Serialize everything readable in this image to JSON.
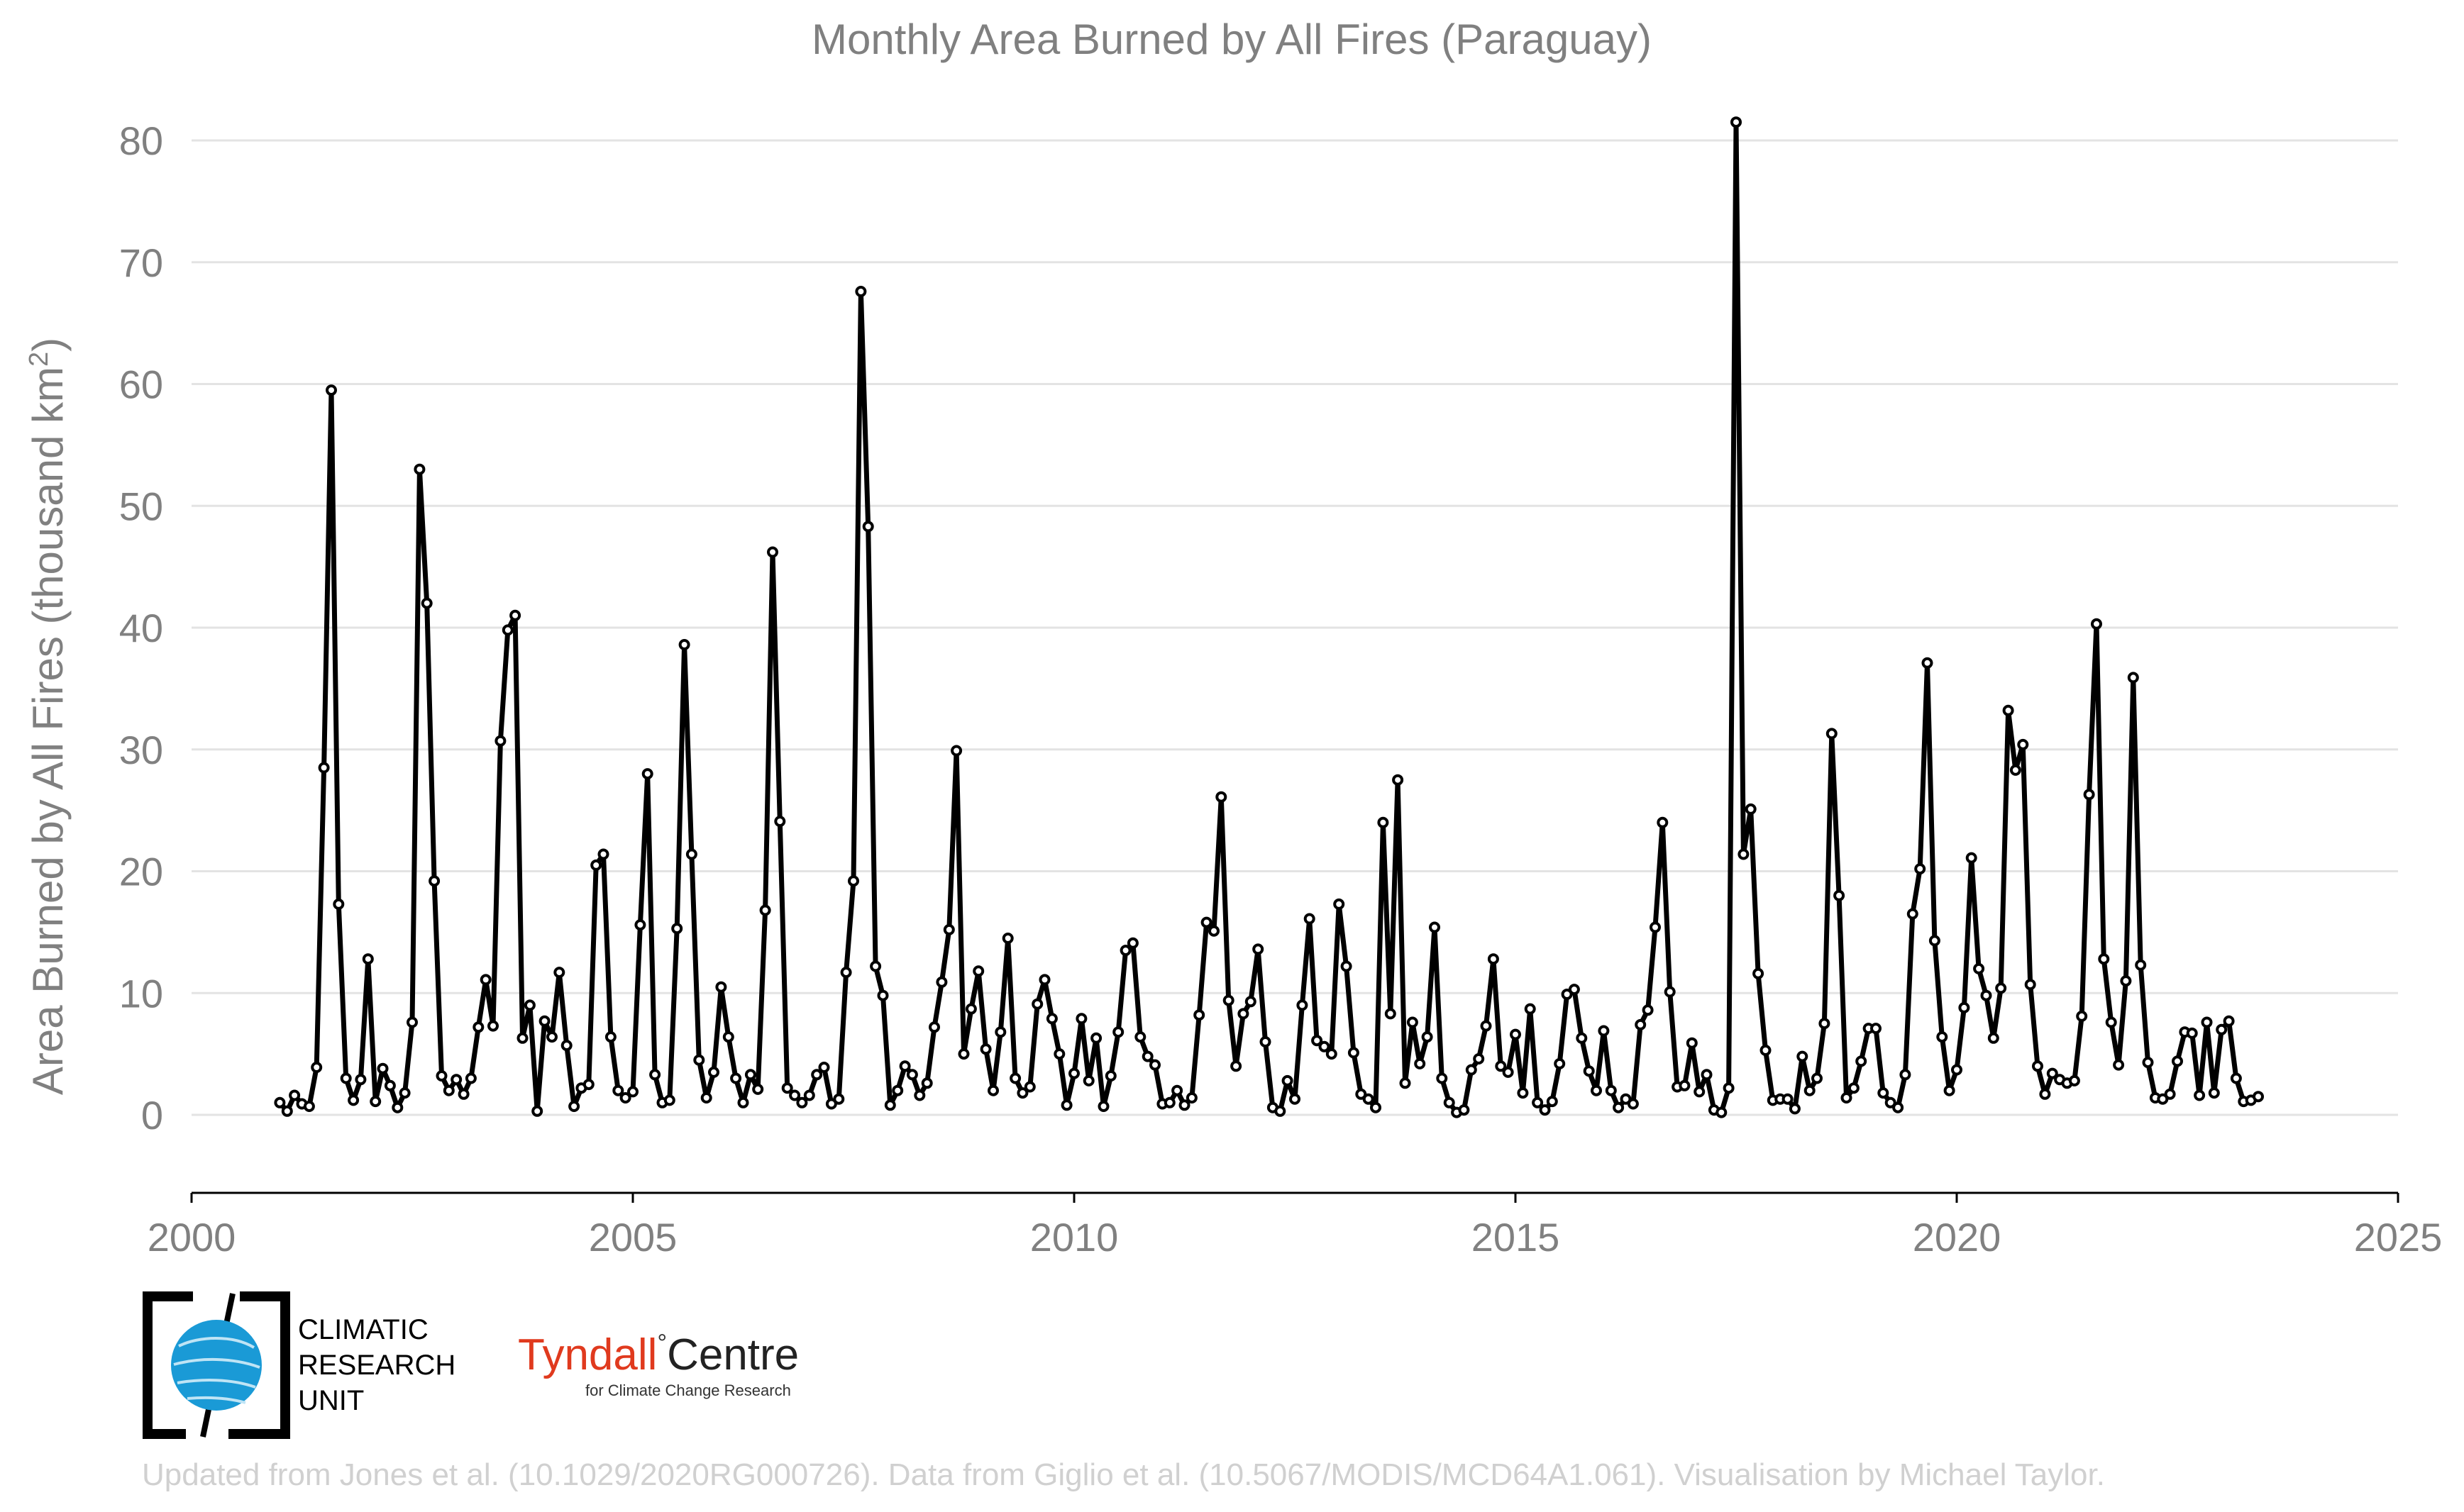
{
  "title": "Monthly Area Burned by All Fires (Paraguay)",
  "ylabel_main": "Area Burned by All Fires (thousand km",
  "ylabel_sup": "2",
  "ylabel_close": ")",
  "logos": {
    "cru_line1": "CLIMATIC",
    "cru_line2": "RESEARCH",
    "cru_line3": "UNIT",
    "tyndall_a": "Tyndall",
    "tyndall_deg": "°",
    "tyndall_b": "Centre",
    "tyndall_sub": "for Climate Change Research"
  },
  "credit": "Updated from Jones et al. (10.1029/2020RG000726). Data from Giglio et al. (10.5067/MODIS/MCD64A1.061). Visualisation by Michael Taylor.",
  "colors": {
    "line": "#000000",
    "marker_fill": "#ffffff",
    "grid": "#e3e3e3",
    "text": "#808080",
    "tyndall_red": "#e03a1e",
    "cru_blue": "#1a9ad6"
  },
  "chart_data": {
    "type": "line",
    "title": "Monthly Area Burned by All Fires (Paraguay)",
    "xlabel": "",
    "ylabel": "Area Burned by All Fires (thousand km²)",
    "xlim": [
      2000,
      2025
    ],
    "ylim": [
      -6.5,
      83
    ],
    "xticks": [
      2000,
      2005,
      2010,
      2015,
      2020,
      2025
    ],
    "yticks": [
      0,
      10,
      20,
      30,
      40,
      50,
      60,
      70,
      80
    ],
    "grid": "horizontal",
    "x_start": "2001-01",
    "x_step": "1 month",
    "series": [
      {
        "values": [
          1.0,
          0.3,
          1.6,
          0.9,
          0.7,
          3.9,
          28.5,
          59.5,
          17.3,
          3.0,
          1.2,
          2.9,
          12.8,
          1.1,
          3.8,
          2.4,
          0.6,
          1.8,
          7.6,
          53.0,
          42.0,
          19.2,
          3.2,
          2.0,
          2.9,
          1.7,
          3.0,
          7.2,
          11.1,
          7.3,
          30.7,
          39.8,
          41.0,
          6.3,
          9.0,
          0.3,
          7.7,
          6.4,
          11.7,
          5.7,
          0.7,
          2.2,
          2.5,
          20.5,
          21.4,
          6.4,
          2.0,
          1.4,
          1.9,
          15.6,
          28.0,
          3.3,
          1.0,
          1.2,
          15.3,
          38.6,
          21.4,
          4.5,
          1.4,
          3.5,
          10.5,
          6.4,
          3.0,
          1.0,
          3.3,
          2.1,
          16.8,
          46.2,
          24.1,
          2.2,
          1.6,
          1.0,
          1.6,
          3.3,
          3.9,
          0.9,
          1.3,
          11.7,
          19.2,
          67.6,
          48.3,
          12.2,
          9.8,
          0.8,
          2.0,
          4.0,
          3.3,
          1.6,
          2.6,
          7.2,
          10.9,
          15.2,
          29.9,
          5.0,
          8.7,
          11.8,
          5.4,
          2.0,
          6.8,
          14.5,
          3.0,
          1.8,
          2.3,
          9.1,
          11.1,
          7.9,
          5.0,
          0.8,
          3.4,
          7.9,
          2.8,
          6.3,
          0.7,
          3.2,
          6.8,
          13.5,
          14.1,
          6.4,
          4.8,
          4.1,
          0.9,
          1.0,
          2.0,
          0.8,
          1.4,
          8.2,
          15.8,
          15.1,
          26.1,
          9.4,
          4.0,
          8.3,
          9.3,
          13.6,
          6.0,
          0.6,
          0.3,
          2.8,
          1.3,
          9.0,
          16.1,
          6.1,
          5.6,
          5.0,
          17.3,
          12.2,
          5.1,
          1.7,
          1.3,
          0.6,
          24.0,
          8.3,
          27.5,
          2.6,
          7.6,
          4.2,
          6.4,
          15.4,
          3.0,
          1.0,
          0.2,
          0.4,
          3.7,
          4.6,
          7.3,
          12.8,
          4.0,
          3.5,
          6.6,
          1.8,
          8.7,
          1.0,
          0.4,
          1.1,
          4.2,
          9.9,
          10.3,
          6.3,
          3.6,
          2.0,
          6.9,
          2.0,
          0.6,
          1.3,
          0.9,
          7.4,
          8.6,
          15.4,
          24.0,
          10.1,
          2.3,
          2.4,
          5.9,
          1.9,
          3.3,
          0.4,
          0.2,
          2.2,
          81.5,
          21.4,
          25.1,
          11.6,
          5.3,
          1.2,
          1.3,
          1.3,
          0.5,
          4.8,
          2.0,
          3.0,
          7.5,
          31.3,
          18.0,
          1.4,
          2.2,
          4.4,
          7.1,
          7.1,
          1.8,
          1.0,
          0.6,
          3.3,
          16.5,
          20.2,
          37.1,
          14.3,
          6.4,
          2.0,
          3.7,
          8.8,
          21.1,
          12.0,
          9.8,
          6.3,
          10.4,
          33.2,
          28.3,
          30.4,
          10.7,
          4.0,
          1.7,
          3.4,
          2.9,
          2.6,
          2.8,
          8.1,
          26.3,
          40.3,
          12.8,
          7.6,
          4.1,
          11.0,
          35.9,
          12.3,
          4.3,
          1.4,
          1.3,
          1.7,
          4.4,
          6.8,
          6.7,
          1.6,
          7.6,
          1.8,
          7.0,
          7.7,
          3.0,
          1.1,
          1.2,
          1.5
        ]
      }
    ]
  }
}
